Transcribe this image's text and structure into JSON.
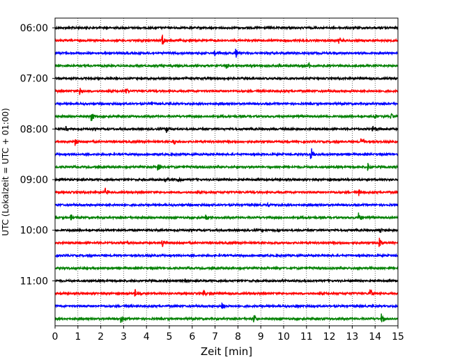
{
  "chart_data": {
    "type": "line",
    "subtype": "helicorder (seismogram drum plot)",
    "title": "",
    "xlabel": "Zeit  [min]",
    "ylabel": "UTC (Lokalzeit = UTC + 01:00)",
    "xlim": [
      0,
      15
    ],
    "x_ticks": [
      "0",
      "1",
      "2",
      "3",
      "4",
      "5",
      "6",
      "7",
      "8",
      "9",
      "10",
      "11",
      "12",
      "13",
      "14",
      "15"
    ],
    "grid": "vertical dotted lines at each minute",
    "line_minutes": 15,
    "series_colors": [
      "#000000",
      "#ff0000",
      "#0000ff",
      "#008000"
    ],
    "hour_labels": [
      "06:00",
      "07:00",
      "08:00",
      "09:00",
      "10:00",
      "11:00"
    ],
    "lines": [
      {
        "start": "06:00",
        "color": "#000000",
        "events": []
      },
      {
        "start": "06:15",
        "color": "#ff0000",
        "events": [
          {
            "t": 4.7,
            "amp": 1.0
          },
          {
            "t": 12.4,
            "amp": 0.6
          }
        ]
      },
      {
        "start": "06:30",
        "color": "#0000ff",
        "events": [
          {
            "t": 7.0,
            "amp": 0.4
          },
          {
            "t": 7.9,
            "amp": 0.7
          }
        ]
      },
      {
        "start": "06:45",
        "color": "#008000",
        "events": [
          {
            "t": 7.5,
            "amp": 0.5
          },
          {
            "t": 9.8,
            "amp": 0.3
          },
          {
            "t": 11.1,
            "amp": 0.4
          }
        ]
      },
      {
        "start": "07:00",
        "color": "#000000",
        "events": []
      },
      {
        "start": "07:15",
        "color": "#ff0000",
        "events": [
          {
            "t": 1.1,
            "amp": 0.6
          },
          {
            "t": 3.1,
            "amp": 0.4
          }
        ]
      },
      {
        "start": "07:30",
        "color": "#0000ff",
        "events": [
          {
            "t": 4.2,
            "amp": 0.3
          }
        ]
      },
      {
        "start": "07:45",
        "color": "#008000",
        "events": [
          {
            "t": 1.6,
            "amp": 0.7
          },
          {
            "t": 14.0,
            "amp": 0.4
          },
          {
            "t": 14.7,
            "amp": 0.5
          }
        ]
      },
      {
        "start": "08:00",
        "color": "#000000",
        "events": [
          {
            "t": 0.5,
            "amp": 0.5
          },
          {
            "t": 4.9,
            "amp": 0.5
          },
          {
            "t": 13.9,
            "amp": 0.6
          }
        ]
      },
      {
        "start": "08:15",
        "color": "#ff0000",
        "events": [
          {
            "t": 0.9,
            "amp": 0.5
          },
          {
            "t": 5.2,
            "amp": 0.4
          },
          {
            "t": 13.4,
            "amp": 0.6
          }
        ]
      },
      {
        "start": "08:30",
        "color": "#0000ff",
        "events": [
          {
            "t": 11.2,
            "amp": 1.2
          }
        ]
      },
      {
        "start": "08:45",
        "color": "#008000",
        "events": [
          {
            "t": 4.5,
            "amp": 0.6
          },
          {
            "t": 13.7,
            "amp": 0.6
          }
        ]
      },
      {
        "start": "09:00",
        "color": "#000000",
        "events": [
          {
            "t": 0.2,
            "amp": 0.4
          },
          {
            "t": 4.8,
            "amp": 0.4
          },
          {
            "t": 5.4,
            "amp": 0.3
          }
        ]
      },
      {
        "start": "09:15",
        "color": "#ff0000",
        "events": [
          {
            "t": 2.2,
            "amp": 0.7
          },
          {
            "t": 13.3,
            "amp": 0.4
          }
        ]
      },
      {
        "start": "09:30",
        "color": "#0000ff",
        "events": [
          {
            "t": 9.3,
            "amp": 0.3
          }
        ]
      },
      {
        "start": "09:45",
        "color": "#008000",
        "events": [
          {
            "t": 0.7,
            "amp": 0.5
          },
          {
            "t": 6.6,
            "amp": 0.4
          },
          {
            "t": 13.3,
            "amp": 0.7
          }
        ]
      },
      {
        "start": "10:00",
        "color": "#000000",
        "events": [
          {
            "t": 14.2,
            "amp": 0.4
          }
        ]
      },
      {
        "start": "10:15",
        "color": "#ff0000",
        "events": [
          {
            "t": 3.0,
            "amp": 0.4
          },
          {
            "t": 4.7,
            "amp": 0.6
          },
          {
            "t": 14.2,
            "amp": 0.7
          }
        ]
      },
      {
        "start": "10:30",
        "color": "#0000ff",
        "events": []
      },
      {
        "start": "10:45",
        "color": "#008000",
        "events": [
          {
            "t": 13.2,
            "amp": 0.3
          },
          {
            "t": 13.8,
            "amp": 0.3
          }
        ]
      },
      {
        "start": "11:00",
        "color": "#000000",
        "events": [
          {
            "t": 5.7,
            "amp": 0.4
          }
        ]
      },
      {
        "start": "11:15",
        "color": "#ff0000",
        "events": [
          {
            "t": 3.5,
            "amp": 0.6
          },
          {
            "t": 6.5,
            "amp": 0.4
          },
          {
            "t": 13.8,
            "amp": 0.7
          }
        ]
      },
      {
        "start": "11:30",
        "color": "#0000ff",
        "events": [
          {
            "t": 7.3,
            "amp": 0.5
          },
          {
            "t": 10.5,
            "amp": 0.3
          }
        ]
      },
      {
        "start": "11:45",
        "color": "#008000",
        "events": [
          {
            "t": 2.9,
            "amp": 0.5
          },
          {
            "t": 8.7,
            "amp": 0.8
          },
          {
            "t": 14.3,
            "amp": 0.7
          }
        ]
      }
    ]
  }
}
